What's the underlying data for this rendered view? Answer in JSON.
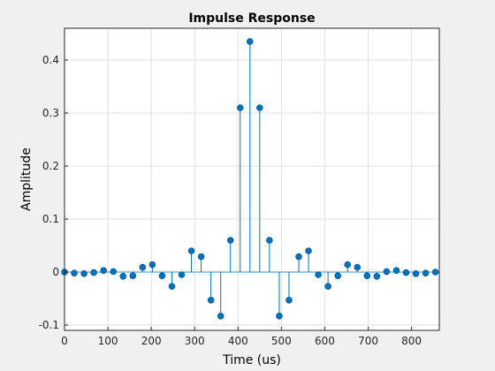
{
  "chart_data": {
    "type": "stem",
    "title": "Impulse Response",
    "xlabel": "Time (us)",
    "ylabel": "Amplitude",
    "xlim": [
      0,
      864
    ],
    "ylim": [
      -0.11,
      0.46
    ],
    "xticks": [
      0,
      100,
      200,
      300,
      400,
      500,
      600,
      700,
      800
    ],
    "yticks": [
      -0.1,
      0,
      0.1,
      0.2,
      0.3,
      0.4
    ],
    "ytick_labels": [
      "-0.1",
      "0",
      "0.1",
      "0.2",
      "0.3",
      "0.4"
    ],
    "grid": true,
    "color": "#0072bd",
    "series": [
      {
        "x": [
          0,
          22.5,
          45,
          67.5,
          90,
          112.5,
          135,
          157.5,
          180,
          202.5,
          225,
          247.5,
          270,
          292.5,
          315,
          337.5,
          360,
          382.5,
          405,
          427.5,
          450,
          472.5,
          495,
          517.5,
          540,
          562.5,
          585,
          607.5,
          630,
          652.5,
          675,
          697.5,
          720,
          742.5,
          765,
          787.5,
          810,
          832.5,
          855
        ],
        "values": [
          0,
          -0.002,
          -0.003,
          -0.001,
          0.003,
          0.001,
          -0.008,
          -0.007,
          0.009,
          0.014,
          -0.007,
          -0.027,
          -0.005,
          0.04,
          0.029,
          -0.053,
          -0.083,
          0.06,
          0.31,
          0.435,
          0.31,
          0.06,
          -0.083,
          -0.053,
          0.029,
          0.04,
          -0.005,
          -0.027,
          -0.007,
          0.014,
          0.009,
          -0.007,
          -0.008,
          0.001,
          0.003,
          -0.001,
          -0.003,
          -0.002,
          0
        ]
      }
    ]
  }
}
